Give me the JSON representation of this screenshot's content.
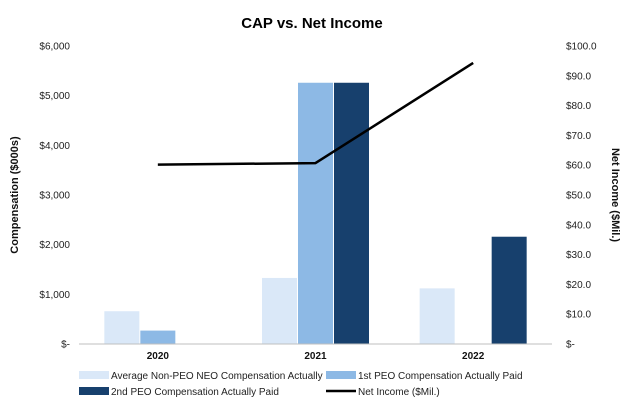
{
  "chart_data": {
    "type": "bar",
    "title": "CAP vs. Net Income",
    "xlabel": "",
    "ylabel": "Compensation ($000s)",
    "y2label": "Net Income ($Mil.)",
    "categories": [
      "2020",
      "2021",
      "2022"
    ],
    "ylim": [
      0,
      6000
    ],
    "y2lim": [
      0,
      100
    ],
    "y_ticks": [
      0,
      1000,
      2000,
      3000,
      4000,
      5000,
      6000
    ],
    "y_tick_labels": [
      "$-",
      "$1,000",
      "$2,000",
      "$3,000",
      "$4,000",
      "$5,000",
      "$6,000"
    ],
    "y2_ticks": [
      0,
      10,
      20,
      30,
      40,
      50,
      60,
      70,
      80,
      90,
      100
    ],
    "y2_tick_labels": [
      "$-",
      "$10.0",
      "$20.0",
      "$30.0",
      "$40.0",
      "$50.0",
      "$60.0",
      "$70.0",
      "$80.0",
      "$90.0",
      "$100.0"
    ],
    "series": [
      {
        "name": "Average Non-PEO NEO Compensation Actually Paid",
        "type": "bar",
        "color": "#dae8f8",
        "values": [
          660,
          1330,
          1120
        ]
      },
      {
        "name": "1st PEO Compensation Actually Paid",
        "type": "bar",
        "color": "#8db9e5",
        "values": [
          270,
          5260,
          null
        ]
      },
      {
        "name": "2nd PEO Compensation Actually Paid",
        "type": "bar",
        "color": "#17406d",
        "values": [
          null,
          5260,
          2160
        ]
      },
      {
        "name": "Net Income ($Mil.)",
        "type": "line",
        "axis": "right",
        "color": "#000000",
        "values": [
          60.2,
          60.7,
          94.3
        ]
      }
    ],
    "grid": false,
    "legend_position": "bottom"
  }
}
